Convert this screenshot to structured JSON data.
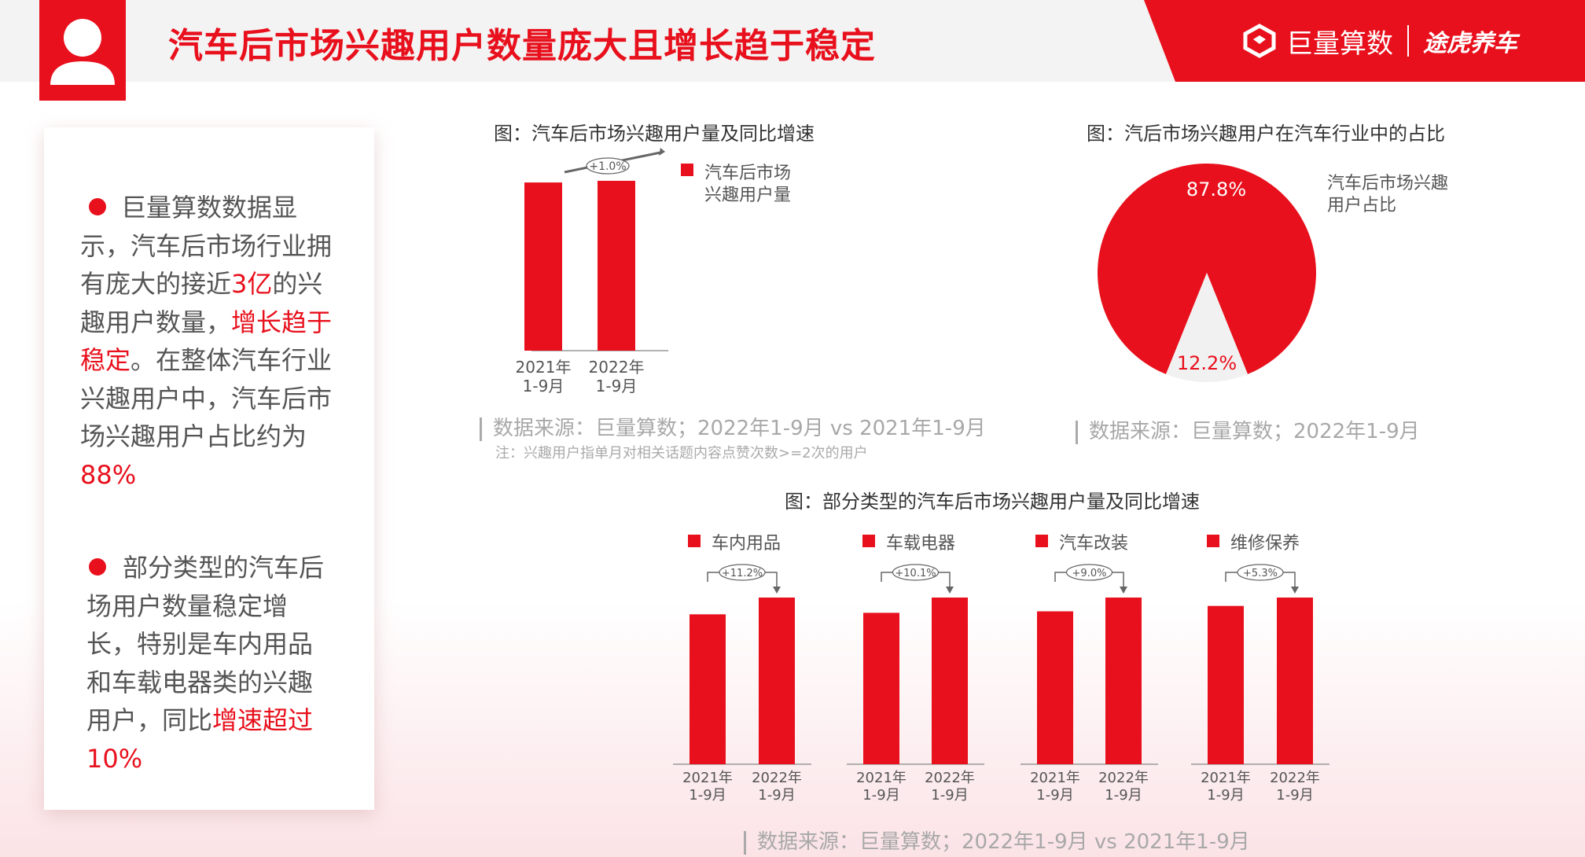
{
  "header": {
    "title": "汽车后市场兴趣用户数量庞大且增长趋于稳定",
    "brand_primary": "巨量算数",
    "brand_secondary": "途虎养车",
    "accent_color": "#e8101c"
  },
  "summary": {
    "p1": [
      {
        "t": "巨量算数数据显示，汽车后市场行业拥有庞大的接近"
      },
      {
        "t": "3亿",
        "hl": true
      },
      {
        "t": "的兴趣用户数量，"
      },
      {
        "t": "增长趋于稳定",
        "hl": true
      },
      {
        "t": "。在整体汽车行业兴趣用户中，汽车后市场兴趣用户占比约为"
      },
      {
        "t": "88%",
        "hl": true
      }
    ],
    "p2": [
      {
        "t": "部分类型的汽车后场用户数量稳定增长，特别是车内用品和车载电器类的兴趣用户，同比"
      },
      {
        "t": "增速超过10%",
        "hl": true
      }
    ]
  },
  "chart_data": [
    {
      "type": "bar",
      "title": "图：汽车后市场兴趣用户量及同比增速",
      "categories": [
        "2021年\n1-9月",
        "2022年\n1-9月"
      ],
      "series": [
        {
          "name": "汽车后市场\n兴趣用户量",
          "values": [
            100,
            101
          ]
        }
      ],
      "growth_label": "+1.0%",
      "ylim": [
        0,
        115
      ],
      "source": "数据来源：巨量算数；2022年1-9月 vs 2021年1-9月",
      "note": "注：兴趣用户指单月对相关话题内容点赞次数>=2次的用户"
    },
    {
      "type": "pie",
      "title": "图：汽后市场兴趣用户在汽车行业中的占比",
      "slices": [
        {
          "label": "87.8%",
          "value": 87.8,
          "color": "#e8101c"
        },
        {
          "label": "12.2%",
          "value": 12.2,
          "color": "#f1f1f1"
        }
      ],
      "legend": "汽车后市场兴趣\n用户占比",
      "source": "数据来源：巨量算数；2022年1-9月"
    },
    {
      "type": "bar",
      "title": "图：部分类型的汽车后市场兴趣用户量及同比增速",
      "categories": [
        "2021年\n1-9月",
        "2022年\n1-9月"
      ],
      "ylim": [
        0,
        130
      ],
      "groups": [
        {
          "name": "车内用品",
          "growth": "+11.2%",
          "values": [
            100,
            111.2
          ]
        },
        {
          "name": "车载电器",
          "growth": "+10.1%",
          "values": [
            101,
            111.2
          ]
        },
        {
          "name": "汽车改装",
          "growth": "+9.0%",
          "values": [
            102,
            111.2
          ]
        },
        {
          "name": "维修保养",
          "growth": "+5.3%",
          "values": [
            105.6,
            111.2
          ]
        }
      ],
      "source": "数据来源：巨量算数；2022年1-9月 vs 2021年1-9月"
    }
  ]
}
